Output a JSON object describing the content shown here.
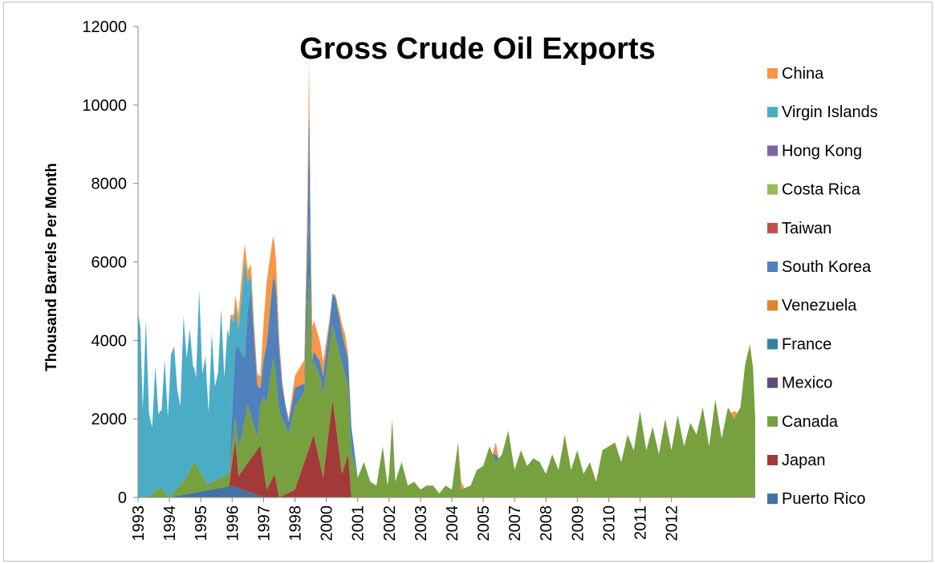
{
  "chart_data": {
    "type": "area",
    "stacked": true,
    "title": "Gross Crude Oil Exports",
    "xlabel": "",
    "ylabel": "Thousand Barrels Per Month",
    "ylim": [
      0,
      12000
    ],
    "yticks": [
      0,
      2000,
      4000,
      6000,
      8000,
      10000,
      12000
    ],
    "xlim": [
      1993.0,
      2012.67
    ],
    "xticks": [
      {
        "label": "1993",
        "value": 1993.0
      },
      {
        "label": "1994",
        "value": 1994.0
      },
      {
        "label": "1995",
        "value": 1995.0
      },
      {
        "label": "1996",
        "value": 1996.0
      },
      {
        "label": "1997",
        "value": 1997.0
      },
      {
        "label": "1998",
        "value": 1998.0
      },
      {
        "label": "2000",
        "value": 1999.0
      },
      {
        "label": "2001",
        "value": 2000.0
      },
      {
        "label": "2002",
        "value": 2001.0
      },
      {
        "label": "2003",
        "value": 2002.0
      },
      {
        "label": "2004",
        "value": 2003.0
      },
      {
        "label": "2005",
        "value": 2004.0
      },
      {
        "label": "2007",
        "value": 2005.0
      },
      {
        "label": "2008",
        "value": 2006.0
      },
      {
        "label": "2009",
        "value": 2007.0
      },
      {
        "label": "2010",
        "value": 2008.0
      },
      {
        "label": "2011",
        "value": 2009.0
      },
      {
        "label": "2012",
        "value": 2010.0
      }
    ],
    "grid": false,
    "legend_position": "right",
    "series": [
      {
        "name": "Puerto Rico",
        "color": "#4472a4",
        "points": [
          [
            1993.0,
            0
          ],
          [
            1994.0,
            0
          ],
          [
            1996.0,
            300
          ],
          [
            1997.0,
            0
          ],
          [
            1998.0,
            0
          ],
          [
            2012.67,
            0
          ]
        ]
      },
      {
        "name": "Japan",
        "color": "#a33a3a",
        "points": [
          [
            1993.0,
            0
          ],
          [
            1995.9,
            0
          ],
          [
            1996.1,
            1200
          ],
          [
            1996.2,
            300
          ],
          [
            1996.9,
            1300
          ],
          [
            1997.1,
            200
          ],
          [
            1997.35,
            600
          ],
          [
            1997.5,
            0
          ],
          [
            1998.0,
            200
          ],
          [
            1998.3,
            900
          ],
          [
            1998.6,
            1600
          ],
          [
            1998.9,
            500
          ],
          [
            1999.2,
            2500
          ],
          [
            1999.5,
            600
          ],
          [
            1999.7,
            1100
          ],
          [
            1999.8,
            0
          ],
          [
            2012.67,
            0
          ]
        ]
      },
      {
        "name": "Canada",
        "color": "#77a03f",
        "points": [
          [
            1993.0,
            0
          ],
          [
            1993.4,
            50
          ],
          [
            1993.7,
            250
          ],
          [
            1994.0,
            0
          ],
          [
            1994.5,
            400
          ],
          [
            1994.8,
            800
          ],
          [
            1995.2,
            150
          ],
          [
            1995.8,
            300
          ],
          [
            1996.0,
            400
          ],
          [
            1996.3,
            900
          ],
          [
            1996.5,
            1500
          ],
          [
            1996.8,
            300
          ],
          [
            1997.0,
            1800
          ],
          [
            1997.3,
            3000
          ],
          [
            1997.5,
            2200
          ],
          [
            1997.8,
            1500
          ],
          [
            1998.0,
            2100
          ],
          [
            1998.3,
            1800
          ],
          [
            1998.45,
            4400
          ],
          [
            1998.55,
            1800
          ],
          [
            1998.8,
            2200
          ],
          [
            1999.2,
            1900
          ],
          [
            1999.5,
            2800
          ],
          [
            1999.8,
            1200
          ],
          [
            2000.0,
            500
          ],
          [
            2000.2,
            900
          ],
          [
            2000.4,
            400
          ],
          [
            2000.6,
            300
          ],
          [
            2000.8,
            1300
          ],
          [
            2000.95,
            300
          ],
          [
            2001.0,
            600
          ],
          [
            2001.1,
            2000
          ],
          [
            2001.2,
            400
          ],
          [
            2001.4,
            900
          ],
          [
            2001.6,
            300
          ],
          [
            2001.8,
            400
          ],
          [
            2002.0,
            200
          ],
          [
            2002.2,
            300
          ],
          [
            2002.4,
            300
          ],
          [
            2002.6,
            100
          ],
          [
            2002.8,
            300
          ],
          [
            2003.0,
            200
          ],
          [
            2003.2,
            1400
          ],
          [
            2003.3,
            200
          ],
          [
            2003.6,
            300
          ],
          [
            2003.8,
            700
          ],
          [
            2004.0,
            800
          ],
          [
            2004.2,
            1300
          ],
          [
            2004.4,
            900
          ],
          [
            2004.6,
            1100
          ],
          [
            2004.8,
            1700
          ],
          [
            2005.0,
            700
          ],
          [
            2005.2,
            1200
          ],
          [
            2005.4,
            800
          ],
          [
            2005.6,
            1000
          ],
          [
            2005.8,
            900
          ],
          [
            2006.0,
            600
          ],
          [
            2006.2,
            1100
          ],
          [
            2006.4,
            700
          ],
          [
            2006.6,
            1600
          ],
          [
            2006.8,
            700
          ],
          [
            2007.0,
            1200
          ],
          [
            2007.2,
            600
          ],
          [
            2007.4,
            900
          ],
          [
            2007.6,
            400
          ],
          [
            2007.8,
            1200
          ],
          [
            2008.0,
            1300
          ],
          [
            2008.2,
            1400
          ],
          [
            2008.4,
            900
          ],
          [
            2008.6,
            1600
          ],
          [
            2008.8,
            1200
          ],
          [
            2009.0,
            2200
          ],
          [
            2009.2,
            1200
          ],
          [
            2009.4,
            1800
          ],
          [
            2009.6,
            1100
          ],
          [
            2009.8,
            2000
          ],
          [
            2010.0,
            1200
          ],
          [
            2010.2,
            2100
          ],
          [
            2010.4,
            1300
          ],
          [
            2010.6,
            1900
          ],
          [
            2010.8,
            1600
          ],
          [
            2011.0,
            2300
          ],
          [
            2011.2,
            1300
          ],
          [
            2011.4,
            2500
          ],
          [
            2011.6,
            1500
          ],
          [
            2011.8,
            2300
          ],
          [
            2012.0,
            2000
          ],
          [
            2012.2,
            2300
          ],
          [
            2012.35,
            3400
          ],
          [
            2012.5,
            3900
          ],
          [
            2012.6,
            3300
          ],
          [
            2012.67,
            2000
          ]
        ]
      },
      {
        "name": "Mexico",
        "color": "#604a7b",
        "points": [
          [
            1993.0,
            0
          ],
          [
            2012.67,
            0
          ]
        ]
      },
      {
        "name": "France",
        "color": "#31849b",
        "points": [
          [
            1993.0,
            0
          ],
          [
            1998.4,
            0
          ],
          [
            1998.45,
            1500
          ],
          [
            1998.5,
            0
          ],
          [
            2012.67,
            0
          ]
        ]
      },
      {
        "name": "Venezuela",
        "color": "#e3832a",
        "points": [
          [
            1993.0,
            0
          ],
          [
            2012.67,
            0
          ]
        ]
      },
      {
        "name": "South Korea",
        "color": "#4f81bd",
        "points": [
          [
            1993.0,
            0
          ],
          [
            1995.9,
            0
          ],
          [
            1996.2,
            2600
          ],
          [
            1996.4,
            1600
          ],
          [
            1996.6,
            3200
          ],
          [
            1996.9,
            400
          ],
          [
            1997.1,
            1500
          ],
          [
            1997.4,
            2300
          ],
          [
            1997.6,
            800
          ],
          [
            1997.8,
            300
          ],
          [
            1998.0,
            500
          ],
          [
            1998.3,
            200
          ],
          [
            1998.45,
            3000
          ],
          [
            1998.55,
            200
          ],
          [
            1998.8,
            400
          ],
          [
            1999.1,
            600
          ],
          [
            1999.3,
            1000
          ],
          [
            1999.5,
            800
          ],
          [
            1999.8,
            600
          ],
          [
            2000.0,
            0
          ],
          [
            2004.3,
            0
          ],
          [
            2004.4,
            200
          ],
          [
            2004.5,
            0
          ],
          [
            2012.67,
            0
          ]
        ]
      },
      {
        "name": "Taiwan",
        "color": "#c0504d",
        "points": [
          [
            1993.0,
            0
          ],
          [
            2012.67,
            0
          ]
        ]
      },
      {
        "name": "Costa Rica",
        "color": "#9bbb59",
        "points": [
          [
            1993.0,
            0
          ],
          [
            2012.67,
            0
          ]
        ]
      },
      {
        "name": "Hong Kong",
        "color": "#8064a2",
        "points": [
          [
            1993.0,
            0
          ],
          [
            2012.67,
            0
          ]
        ]
      },
      {
        "name": "Virgin Islands",
        "color": "#4bacc6",
        "points": [
          [
            1993.0,
            4700
          ],
          [
            1993.08,
            4300
          ],
          [
            1993.15,
            2200
          ],
          [
            1993.25,
            4500
          ],
          [
            1993.35,
            2100
          ],
          [
            1993.45,
            1700
          ],
          [
            1993.55,
            3200
          ],
          [
            1993.65,
            1900
          ],
          [
            1993.75,
            2000
          ],
          [
            1993.85,
            3400
          ],
          [
            1993.95,
            2000
          ],
          [
            1994.05,
            3600
          ],
          [
            1994.15,
            3700
          ],
          [
            1994.25,
            2500
          ],
          [
            1994.35,
            2000
          ],
          [
            1994.45,
            4200
          ],
          [
            1994.55,
            3000
          ],
          [
            1994.65,
            3600
          ],
          [
            1994.75,
            2500
          ],
          [
            1994.85,
            2200
          ],
          [
            1994.95,
            4600
          ],
          [
            1995.05,
            2600
          ],
          [
            1995.15,
            3200
          ],
          [
            1995.25,
            1800
          ],
          [
            1995.35,
            3800
          ],
          [
            1995.45,
            2400
          ],
          [
            1995.55,
            2700
          ],
          [
            1995.65,
            4300
          ],
          [
            1995.75,
            2500
          ],
          [
            1995.85,
            3700
          ],
          [
            1995.95,
            3200
          ],
          [
            1996.05,
            1500
          ],
          [
            1996.2,
            400
          ],
          [
            1996.4,
            2500
          ],
          [
            1996.5,
            700
          ],
          [
            1996.7,
            0
          ],
          [
            2012.67,
            0
          ]
        ]
      },
      {
        "name": "China",
        "color": "#f79646",
        "points": [
          [
            1993.0,
            0
          ],
          [
            1995.9,
            0
          ],
          [
            1996.3,
            500
          ],
          [
            1996.5,
            300
          ],
          [
            1996.9,
            300
          ],
          [
            1997.1,
            1600
          ],
          [
            1997.3,
            1100
          ],
          [
            1997.5,
            300
          ],
          [
            1997.7,
            0
          ],
          [
            1998.3,
            600
          ],
          [
            1998.45,
            1000
          ],
          [
            1998.6,
            800
          ],
          [
            1998.8,
            500
          ],
          [
            1999.2,
            0
          ],
          [
            1999.6,
            300
          ],
          [
            1999.8,
            0
          ],
          [
            2003.2,
            0
          ],
          [
            2003.3,
            200
          ],
          [
            2003.4,
            0
          ],
          [
            2004.3,
            0
          ],
          [
            2004.4,
            300
          ],
          [
            2004.5,
            0
          ],
          [
            2011.9,
            0
          ],
          [
            2012.0,
            200
          ],
          [
            2012.1,
            0
          ],
          [
            2012.67,
            0
          ]
        ]
      }
    ]
  }
}
